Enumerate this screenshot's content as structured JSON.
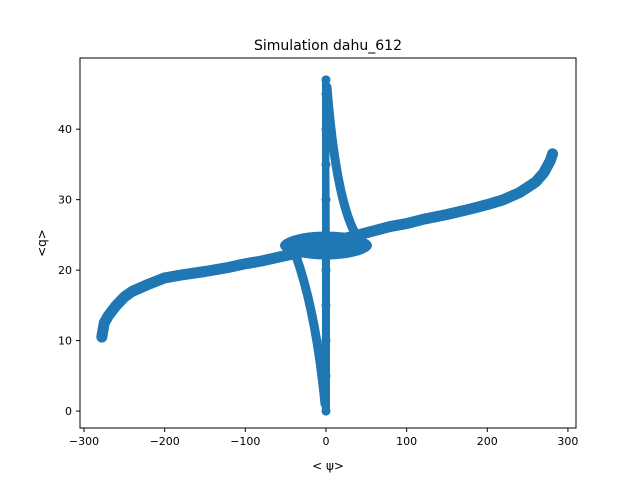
{
  "chart_data": {
    "type": "scatter",
    "title": "Simulation dahu_612",
    "xlabel": "< ψ>",
    "ylabel": "<q>",
    "xlim": [
      -305,
      310
    ],
    "ylim": [
      -2.4,
      50.1
    ],
    "xticks": [
      -300,
      -200,
      -100,
      0,
      100,
      200,
      300
    ],
    "yticks": [
      0,
      10,
      20,
      30,
      40
    ],
    "xtick_labels": [
      "−300",
      "−200",
      "−100",
      "0",
      "100",
      "200",
      "300"
    ],
    "ytick_labels": [
      "0",
      "10",
      "20",
      "30",
      "40"
    ],
    "grid": false,
    "marker_color": "#1f77b4",
    "series": [
      {
        "band_points": [
          [
            -278,
            10.5
          ],
          [
            -275,
            12.5
          ],
          [
            -270,
            13.5
          ],
          [
            -260,
            15.0
          ],
          [
            -250,
            16.2
          ],
          [
            -240,
            17.0
          ],
          [
            -220,
            18.0
          ],
          [
            -200,
            18.9
          ],
          [
            -180,
            19.3
          ],
          [
            -150,
            19.8
          ],
          [
            -120,
            20.4
          ],
          [
            -100,
            20.9
          ],
          [
            -80,
            21.3
          ],
          [
            -60,
            21.8
          ],
          [
            -40,
            22.3
          ],
          [
            -20,
            22.8
          ],
          [
            -5,
            23.2
          ],
          [
            0,
            23.5
          ],
          [
            5,
            23.9
          ],
          [
            20,
            24.4
          ],
          [
            40,
            25.0
          ],
          [
            60,
            25.6
          ],
          [
            80,
            26.2
          ],
          [
            100,
            26.6
          ],
          [
            120,
            27.2
          ],
          [
            150,
            27.9
          ],
          [
            180,
            28.7
          ],
          [
            200,
            29.3
          ],
          [
            220,
            30.0
          ],
          [
            240,
            31.0
          ],
          [
            260,
            32.5
          ],
          [
            270,
            33.8
          ],
          [
            278,
            35.5
          ],
          [
            281,
            36.5
          ]
        ],
        "spike_points": [
          [
            0,
            0
          ],
          [
            0,
            5
          ],
          [
            0,
            10
          ],
          [
            0,
            15
          ],
          [
            0,
            20
          ],
          [
            0,
            25
          ],
          [
            0,
            30
          ],
          [
            0,
            35
          ],
          [
            0,
            40
          ],
          [
            0,
            45
          ],
          [
            0,
            47
          ]
        ]
      }
    ]
  }
}
